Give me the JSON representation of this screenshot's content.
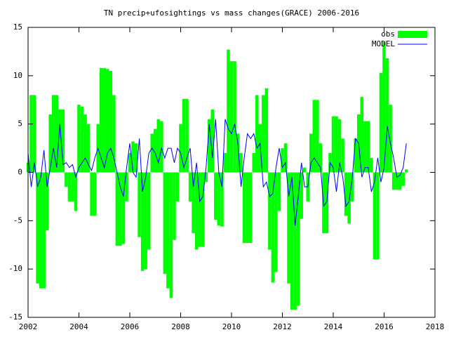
{
  "chart_data": {
    "type": "bar_line",
    "title": "TN precip+ufosightings vs mass changes(GRACE) 2006-2016",
    "x": [
      2002,
      2002.125,
      2002.25,
      2002.375,
      2002.5,
      2002.625,
      2002.75,
      2002.875,
      2003,
      2003.125,
      2003.25,
      2003.375,
      2003.5,
      2003.625,
      2003.75,
      2003.875,
      2004,
      2004.125,
      2004.25,
      2004.375,
      2004.5,
      2004.625,
      2004.75,
      2004.875,
      2005,
      2005.125,
      2005.25,
      2005.375,
      2005.5,
      2005.625,
      2005.75,
      2005.875,
      2006,
      2006.125,
      2006.25,
      2006.375,
      2006.5,
      2006.625,
      2006.75,
      2006.875,
      2007,
      2007.125,
      2007.25,
      2007.375,
      2007.5,
      2007.625,
      2007.75,
      2007.875,
      2008,
      2008.125,
      2008.25,
      2008.375,
      2008.5,
      2008.625,
      2008.75,
      2008.875,
      2009,
      2009.125,
      2009.25,
      2009.375,
      2009.5,
      2009.625,
      2009.75,
      2009.875,
      2010,
      2010.125,
      2010.25,
      2010.375,
      2010.5,
      2010.625,
      2010.75,
      2010.875,
      2011,
      2011.125,
      2011.25,
      2011.375,
      2011.5,
      2011.625,
      2011.75,
      2011.875,
      2012,
      2012.125,
      2012.25,
      2012.375,
      2012.5,
      2012.625,
      2012.75,
      2012.875,
      2013,
      2013.125,
      2013.25,
      2013.375,
      2013.5,
      2013.625,
      2013.75,
      2013.875,
      2014,
      2014.125,
      2014.25,
      2014.375,
      2014.5,
      2014.625,
      2014.75,
      2014.875,
      2015,
      2015.125,
      2015.25,
      2015.375,
      2015.5,
      2015.625,
      2015.75,
      2015.875,
      2016,
      2016.125,
      2016.25,
      2016.375,
      2016.5,
      2016.625,
      2016.75,
      2016.875
    ],
    "series": [
      {
        "name": "obs",
        "color": "#00ff00",
        "style": "boxes",
        "values": [
          1,
          8,
          8,
          -11.5,
          -12,
          -12,
          -6,
          6,
          8,
          8,
          6.5,
          6.5,
          -1.5,
          -3,
          -3,
          -4,
          7,
          6.8,
          6,
          5,
          -4.5,
          -4.5,
          5,
          10.8,
          10.8,
          10.7,
          10.5,
          8,
          -7.6,
          -7.6,
          -7.4,
          -3,
          2,
          3.2,
          3,
          -6.7,
          -10.2,
          -10,
          -8,
          4,
          4.5,
          5.5,
          5.3,
          -10.5,
          -12,
          -13,
          -7,
          -3,
          5,
          7.6,
          7.6,
          -3,
          -6.3,
          -8,
          -7.7,
          -7.7,
          -1,
          5.5,
          6.5,
          -4.9,
          -5.5,
          -5.6,
          2,
          12.7,
          11.5,
          11.5,
          4,
          2,
          -7.3,
          -7.3,
          -7.3,
          2,
          8,
          5,
          8,
          8.7,
          -8,
          -11.4,
          -10.3,
          -4,
          2.5,
          3,
          -11.5,
          -14.2,
          -14.2,
          -13.8,
          -4.8,
          0.5,
          -3,
          4,
          7.5,
          7.5,
          3,
          -6.3,
          -6.3,
          2,
          5.8,
          5.8,
          5.5,
          3.5,
          -4.5,
          -5.3,
          -3,
          3.5,
          6,
          7.8,
          5.3,
          5.3,
          1.5,
          -9,
          -9,
          10.3,
          13.5,
          11.8,
          7,
          -1.8,
          -1.8,
          -1.8,
          -1.4,
          0.3
        ]
      },
      {
        "name": "MODEL",
        "color": "#0000ff",
        "style": "line",
        "values": [
          2,
          -1.5,
          1,
          -1.5,
          -0.5,
          2.3,
          -1.5,
          0.5,
          2.5,
          0.5,
          5,
          0.8,
          1,
          0.5,
          0.8,
          -0.5,
          0.5,
          1,
          1.5,
          0.8,
          0.2,
          1.5,
          2.5,
          1.5,
          0.5,
          2,
          2.5,
          1.5,
          0,
          -1.5,
          -2.5,
          0.5,
          3,
          0,
          -0.5,
          3.5,
          -2,
          -0.5,
          2,
          2.5,
          2,
          1,
          2.5,
          1.5,
          2.5,
          2.5,
          1,
          2.5,
          2,
          0.5,
          1.5,
          2.5,
          -1.5,
          1,
          -3,
          -2.5,
          0.5,
          5,
          1.5,
          5.5,
          0,
          -1.5,
          5.5,
          4.5,
          4,
          5,
          3,
          -1.5,
          1.5,
          4,
          3.5,
          4,
          2.5,
          3,
          -1.5,
          -1,
          -2.5,
          -2.2,
          0.5,
          2.5,
          0.5,
          1,
          -2.5,
          -0.5,
          -5.5,
          -2.5,
          1,
          -1.5,
          -1.5,
          1,
          1.5,
          1,
          0.5,
          -3.5,
          -3,
          1,
          0.5,
          -2,
          1,
          -0.5,
          -3.5,
          -3,
          -0.5,
          3.5,
          3,
          -0.5,
          0.5,
          0.5,
          -2,
          -1,
          1.5,
          -1,
          0.5,
          4.8,
          3,
          1.5,
          -0.5,
          -0.3,
          0.5,
          3
        ]
      }
    ],
    "xlim": [
      2002,
      2018
    ],
    "xticks": [
      2002,
      2004,
      2006,
      2008,
      2010,
      2012,
      2014,
      2016,
      2018
    ],
    "ylim": [
      -15,
      15
    ],
    "yticks": [
      -15,
      -10,
      -5,
      0,
      5,
      10,
      15
    ],
    "legend": "top-right",
    "grid": false
  }
}
